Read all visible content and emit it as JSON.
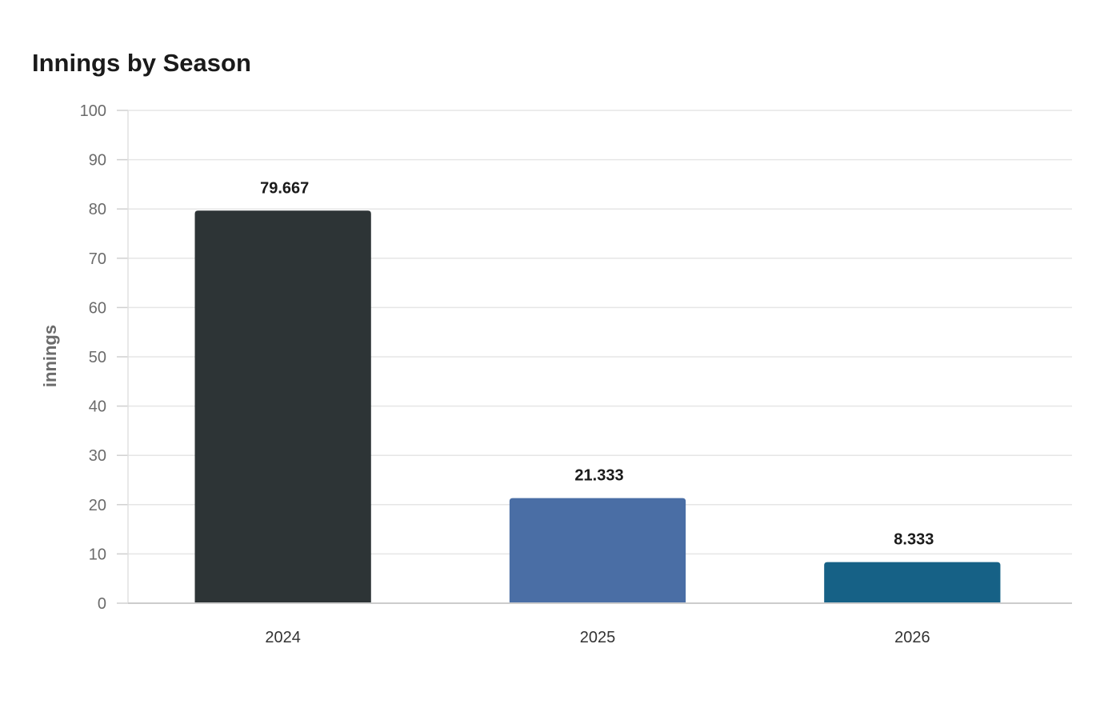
{
  "chart_data": {
    "type": "bar",
    "title": "Innings by Season",
    "xlabel": "",
    "ylabel": "innings",
    "categories": [
      "2024",
      "2025",
      "2026"
    ],
    "values": [
      79.667,
      21.333,
      8.333
    ],
    "value_labels": [
      "79.667",
      "21.333",
      "8.333"
    ],
    "bar_colors": [
      "#2d3436",
      "#4a6ea5",
      "#166186"
    ],
    "ylim": [
      0,
      100
    ],
    "yticks": [
      0,
      10,
      20,
      30,
      40,
      50,
      60,
      70,
      80,
      90,
      100
    ],
    "grid": true,
    "legend": "none"
  }
}
